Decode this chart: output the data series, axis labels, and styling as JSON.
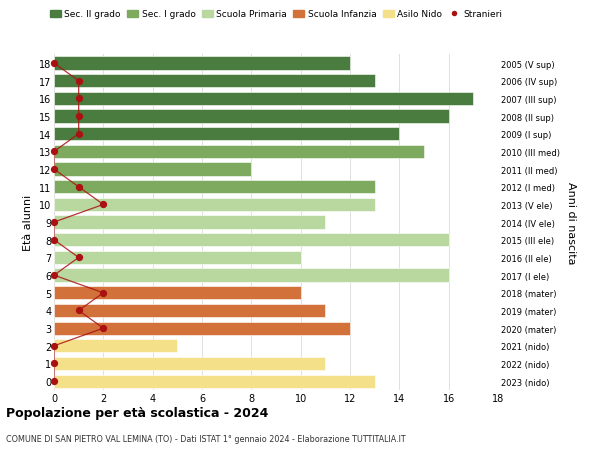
{
  "ages": [
    18,
    17,
    16,
    15,
    14,
    13,
    12,
    11,
    10,
    9,
    8,
    7,
    6,
    5,
    4,
    3,
    2,
    1,
    0
  ],
  "years": [
    "2005 (V sup)",
    "2006 (IV sup)",
    "2007 (III sup)",
    "2008 (II sup)",
    "2009 (I sup)",
    "2010 (III med)",
    "2011 (II med)",
    "2012 (I med)",
    "2013 (V ele)",
    "2014 (IV ele)",
    "2015 (III ele)",
    "2016 (II ele)",
    "2017 (I ele)",
    "2018 (mater)",
    "2019 (mater)",
    "2020 (mater)",
    "2021 (nido)",
    "2022 (nido)",
    "2023 (nido)"
  ],
  "values": [
    12,
    13,
    17,
    16,
    14,
    15,
    8,
    13,
    13,
    11,
    16,
    10,
    16,
    10,
    11,
    12,
    5,
    11,
    13
  ],
  "stranieri": [
    0,
    1,
    1,
    1,
    1,
    0,
    0,
    1,
    2,
    0,
    0,
    1,
    0,
    2,
    1,
    2,
    0,
    0,
    0
  ],
  "categories": [
    "Sec. II grado",
    "Sec. I grado",
    "Scuola Primaria",
    "Scuola Infanzia",
    "Asilo Nido",
    "Stranieri"
  ],
  "colors": {
    "Sec. II grado": "#4a7c3f",
    "Sec. I grado": "#7daa5e",
    "Scuola Primaria": "#b8d8a0",
    "Scuola Infanzia": "#d2713a",
    "Asilo Nido": "#f5e08a",
    "Stranieri": "#aa1111"
  },
  "bar_colors": [
    "#4a7c3f",
    "#4a7c3f",
    "#4a7c3f",
    "#4a7c3f",
    "#4a7c3f",
    "#7daa5e",
    "#7daa5e",
    "#7daa5e",
    "#b8d8a0",
    "#b8d8a0",
    "#b8d8a0",
    "#b8d8a0",
    "#b8d8a0",
    "#d2713a",
    "#d2713a",
    "#d2713a",
    "#f5e08a",
    "#f5e08a",
    "#f5e08a"
  ],
  "title": "Popolazione per età scolastica - 2024",
  "subtitle": "COMUNE DI SAN PIETRO VAL LEMINA (TO) - Dati ISTAT 1° gennaio 2024 - Elaborazione TUTTITALIA.IT",
  "ylabel_left": "Età alunni",
  "ylabel_right": "Anni di nascita",
  "xlim": [
    0,
    18
  ],
  "ylim": [
    -0.5,
    18.5
  ],
  "background_color": "#ffffff",
  "grid_color": "#e0e0e0",
  "bar_height": 0.75
}
